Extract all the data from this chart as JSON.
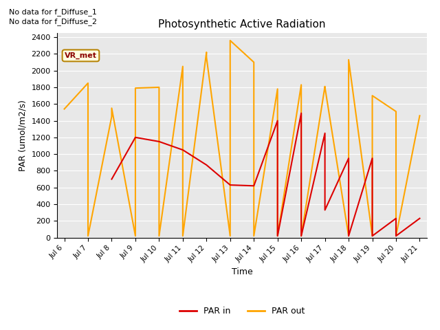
{
  "title": "Photosynthetic Active Radiation",
  "xlabel": "Time",
  "ylabel": "PAR (umol/m2/s)",
  "annotations": [
    "No data for f_Diffuse_1",
    "No data for f_Diffuse_2"
  ],
  "box_label": "VR_met",
  "legend_entries": [
    "PAR in",
    "PAR out"
  ],
  "par_in_color": "#dd0000",
  "par_out_color": "#ffa500",
  "background_color": "#e8e8e8",
  "ylim": [
    0,
    2450
  ],
  "yticks": [
    0,
    200,
    400,
    600,
    800,
    1000,
    1200,
    1400,
    1600,
    1800,
    2000,
    2200,
    2400
  ],
  "x_labels": [
    "Jul 6",
    "Jul 7",
    "Jul 8",
    "Jul 9",
    "Jul 10",
    "Jul 11",
    "Jul 12",
    "Jul 13",
    "Jul 14",
    "Jul 15",
    "Jul 16",
    "Jul 17",
    "Jul 18",
    "Jul 19",
    "Jul 20",
    "Jul 21"
  ],
  "par_out_x": [
    0,
    1,
    1,
    2,
    2,
    3,
    3,
    4,
    4,
    5,
    5,
    6,
    6,
    7,
    7,
    8,
    8,
    9,
    9,
    10,
    10,
    11,
    11,
    12,
    12,
    13,
    13,
    14,
    14,
    15
  ],
  "par_out_y": [
    1540,
    1850,
    20,
    1450,
    1550,
    20,
    1790,
    1800,
    20,
    2050,
    20,
    2220,
    2160,
    20,
    2360,
    2100,
    20,
    1780,
    20,
    1830,
    20,
    1810,
    1800,
    20,
    2130,
    20,
    1700,
    1510,
    20,
    1460
  ],
  "par_in_x": [
    2,
    3,
    3,
    4,
    5,
    6,
    7,
    8,
    8,
    9,
    9,
    10,
    10,
    11,
    11,
    12,
    12,
    13,
    13,
    14,
    14,
    15
  ],
  "par_in_y": [
    700,
    1200,
    1200,
    1150,
    1050,
    870,
    630,
    620,
    620,
    1400,
    20,
    1490,
    20,
    1250,
    330,
    950,
    20,
    950,
    20,
    230,
    20,
    230
  ]
}
